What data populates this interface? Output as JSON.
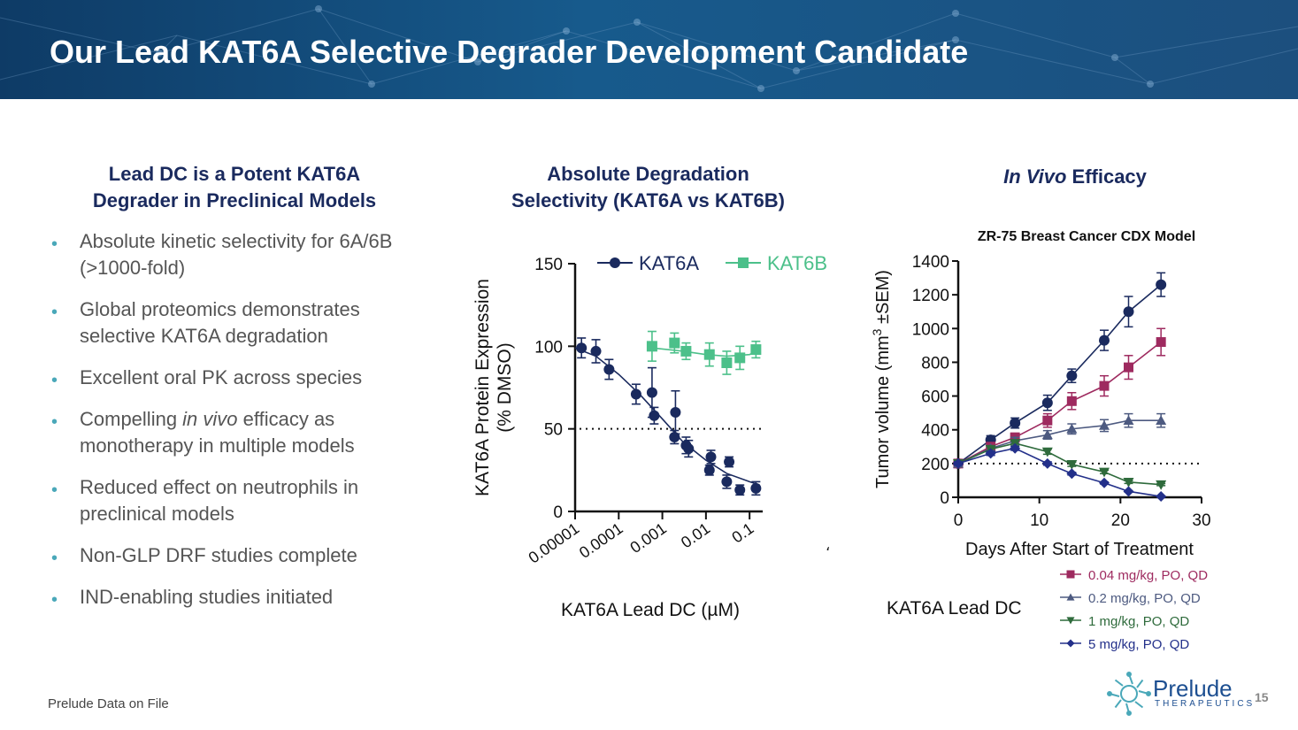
{
  "title": "Our Lead KAT6A Selective Degrader Development Candidate",
  "left": {
    "heading_line1": "Lead DC is a Potent KAT6A",
    "heading_line2": "Degrader in Preclinical Models",
    "bullets": [
      {
        "pre": "Absolute kinetic selectivity for 6A/6B (>1000-fold)",
        "em": "",
        "post": ""
      },
      {
        "pre": "Global proteomics demonstrates selective KAT6A degradation",
        "em": "",
        "post": ""
      },
      {
        "pre": "Excellent oral PK across species",
        "em": "",
        "post": ""
      },
      {
        "pre": "Compelling ",
        "em": "in vivo",
        "post": " efficacy as monotherapy in multiple models"
      },
      {
        "pre": "Reduced effect on neutrophils in preclinical models",
        "em": "",
        "post": ""
      },
      {
        "pre": "Non-GLP DRF studies complete",
        "em": "",
        "post": ""
      },
      {
        "pre": "IND-enabling studies initiated",
        "em": "",
        "post": ""
      }
    ]
  },
  "middle": {
    "heading_line1": "Absolute Degradation",
    "heading_line2": "Selectivity (KAT6A vs KAT6B)"
  },
  "right": {
    "heading_em": "In Vivo",
    "heading_rest": " Efficacy"
  },
  "footnote": "Prelude Data on File",
  "page_number": "15",
  "logo": {
    "word": "Prelude",
    "sub": "THERAPEUTICS"
  },
  "colors": {
    "navy": "#1a2a5e",
    "kat6b": "#4cc08a",
    "c004": "#9e2a5f",
    "c02": "#4d5a80",
    "c1": "#2f6b3c",
    "c5": "#23308a"
  },
  "chart_data": [
    {
      "type": "scatter",
      "title": "",
      "xlabel": "KAT6A Lead DC (µM)",
      "ylabel_line1": "KAT6A Protein Expression",
      "ylabel_line2": "(% DMSO)",
      "xscale": "log",
      "xlim": [
        1e-05,
        0.2
      ],
      "ylim": [
        0,
        150
      ],
      "xticks": [
        1e-05,
        0.0001,
        0.001,
        0.01,
        0.1
      ],
      "xtick_labels": [
        "0.00001",
        "0.0001",
        "0.001",
        "0.01",
        "0.1"
      ],
      "yticks": [
        0,
        50,
        100,
        150
      ],
      "ytick_labels": [
        "0",
        "50",
        "100",
        "150"
      ],
      "reference_line": 50,
      "legend": "top",
      "stray_mark": "،",
      "series": [
        {
          "name": "KAT6A",
          "marker": "circle",
          "color": "#1a2a5e",
          "points": [
            {
              "x": 1.4e-05,
              "y": 99,
              "err": 6
            },
            {
              "x": 3e-05,
              "y": 97,
              "err": 7
            },
            {
              "x": 6e-05,
              "y": 86,
              "err": 6
            },
            {
              "x": 0.00025,
              "y": 71,
              "err": 6
            },
            {
              "x": 0.00058,
              "y": 72,
              "err": 15
            },
            {
              "x": 0.00065,
              "y": 58,
              "err": 5
            },
            {
              "x": 0.0019,
              "y": 45,
              "err": 4
            },
            {
              "x": 0.002,
              "y": 60,
              "err": 13
            },
            {
              "x": 0.0035,
              "y": 40,
              "err": 5
            },
            {
              "x": 0.004,
              "y": 38,
              "err": 5
            },
            {
              "x": 0.012,
              "y": 25,
              "err": 3
            },
            {
              "x": 0.013,
              "y": 33,
              "err": 4
            },
            {
              "x": 0.03,
              "y": 18,
              "err": 4
            },
            {
              "x": 0.034,
              "y": 30,
              "err": 3
            },
            {
              "x": 0.06,
              "y": 13,
              "err": 3
            },
            {
              "x": 0.14,
              "y": 14,
              "err": 4
            }
          ],
          "fit": [
            [
              1e-05,
              99
            ],
            [
              3e-05,
              94
            ],
            [
              0.0001,
              83
            ],
            [
              0.0003,
              71
            ],
            [
              0.001,
              56
            ],
            [
              0.003,
              42
            ],
            [
              0.01,
              31
            ],
            [
              0.03,
              23
            ],
            [
              0.1,
              18
            ],
            [
              0.17,
              16
            ]
          ]
        },
        {
          "name": "KAT6B",
          "marker": "square",
          "color": "#4cc08a",
          "points": [
            {
              "x": 0.00058,
              "y": 100,
              "err": 9
            },
            {
              "x": 0.0019,
              "y": 102,
              "err": 6
            },
            {
              "x": 0.0035,
              "y": 97,
              "err": 5
            },
            {
              "x": 0.012,
              "y": 95,
              "err": 7
            },
            {
              "x": 0.03,
              "y": 90,
              "err": 7
            },
            {
              "x": 0.06,
              "y": 93,
              "err": 7
            },
            {
              "x": 0.14,
              "y": 98,
              "err": 5
            }
          ],
          "fit": [
            [
              0.00058,
              99
            ],
            [
              0.003,
              97
            ],
            [
              0.01,
              95
            ],
            [
              0.03,
              94
            ],
            [
              0.1,
              95
            ],
            [
              0.18,
              98
            ]
          ]
        }
      ]
    },
    {
      "type": "line",
      "title": "ZR-75 Breast Cancer CDX Model",
      "xlabel": "Days After Start of Treatment",
      "ylabel_main": "Tumor volume (mm",
      "ylabel_sup": "3",
      "ylabel_tail": " ±SEM)",
      "xlim": [
        0,
        30
      ],
      "ylim": [
        0,
        1400
      ],
      "xticks": [
        0,
        10,
        20,
        30
      ],
      "yticks": [
        0,
        200,
        400,
        600,
        800,
        1000,
        1200,
        1400
      ],
      "reference_line": 200,
      "legend_title": "KAT6A Lead DC",
      "legend": "bottom-right",
      "series": [
        {
          "name": "",
          "marker": "circle",
          "color": "#1a2a5e",
          "x": [
            0,
            4,
            7,
            11,
            14,
            18,
            21,
            25
          ],
          "y": [
            200,
            340,
            440,
            560,
            720,
            930,
            1100,
            1260
          ],
          "err": [
            15,
            25,
            30,
            45,
            40,
            60,
            90,
            70
          ]
        },
        {
          "name": "0.04 mg/kg, PO, QD",
          "marker": "square",
          "color": "#9e2a5f",
          "x": [
            0,
            4,
            7,
            11,
            14,
            18,
            21,
            25
          ],
          "y": [
            200,
            300,
            355,
            455,
            570,
            660,
            770,
            920
          ],
          "err": [
            10,
            20,
            25,
            40,
            50,
            60,
            70,
            80
          ]
        },
        {
          "name": "0.2 mg/kg, PO, QD",
          "marker": "triangle-up",
          "color": "#4d5a80",
          "x": [
            0,
            4,
            7,
            11,
            14,
            18,
            21,
            25
          ],
          "y": [
            200,
            290,
            335,
            370,
            405,
            425,
            455,
            455
          ],
          "err": [
            10,
            15,
            20,
            25,
            30,
            35,
            40,
            40
          ]
        },
        {
          "name": "1 mg/kg, PO, QD",
          "marker": "triangle-down",
          "color": "#2f6b3c",
          "x": [
            0,
            4,
            7,
            11,
            14,
            18,
            21,
            25
          ],
          "y": [
            200,
            285,
            320,
            270,
            195,
            150,
            90,
            75
          ],
          "err": [
            10,
            15,
            15,
            15,
            12,
            10,
            8,
            6
          ]
        },
        {
          "name": "5 mg/kg, PO, QD",
          "marker": "diamond",
          "color": "#23308a",
          "x": [
            0,
            4,
            7,
            11,
            14,
            18,
            21,
            25
          ],
          "y": [
            200,
            260,
            290,
            200,
            140,
            85,
            35,
            5
          ],
          "err": [
            10,
            12,
            12,
            10,
            8,
            6,
            4,
            2
          ]
        }
      ]
    }
  ]
}
